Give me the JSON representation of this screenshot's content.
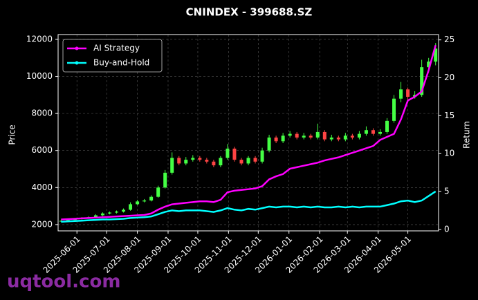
{
  "chart_data": {
    "type": "candlestick",
    "title": "CNINDEX - 399688.SZ",
    "y_label": "Price",
    "y2_label": "Return",
    "watermark": "uqtool.com",
    "x": [
      "2025-05-16",
      "2025-05-23",
      "2025-05-30",
      "2025-06-06",
      "2025-06-13",
      "2025-06-20",
      "2025-06-27",
      "2025-07-04",
      "2025-07-11",
      "2025-07-18",
      "2025-07-25",
      "2025-08-01",
      "2025-08-08",
      "2025-08-15",
      "2025-08-22",
      "2025-08-29",
      "2025-09-05",
      "2025-09-12",
      "2025-09-19",
      "2025-09-26",
      "2025-10-03",
      "2025-10-10",
      "2025-10-17",
      "2025-10-24",
      "2025-10-31",
      "2025-11-07",
      "2025-11-14",
      "2025-11-21",
      "2025-11-28",
      "2025-12-05",
      "2025-12-12",
      "2025-12-19",
      "2025-12-26",
      "2026-01-02",
      "2026-01-09",
      "2026-01-16",
      "2026-01-23",
      "2026-01-30",
      "2026-02-06",
      "2026-02-13",
      "2026-02-20",
      "2026-02-27",
      "2026-03-06",
      "2026-03-13",
      "2026-03-20",
      "2026-03-27",
      "2026-04-03",
      "2026-04-10",
      "2026-04-17",
      "2026-04-24",
      "2026-05-01",
      "2026-05-08",
      "2026-05-15",
      "2026-05-22",
      "2026-05-29"
    ],
    "open": [
      2180,
      2200,
      2250,
      2300,
      2350,
      2400,
      2500,
      2600,
      2650,
      2700,
      2800,
      3100,
      3250,
      3300,
      3500,
      4000,
      4800,
      5600,
      5300,
      5500,
      5600,
      5500,
      5400,
      5200,
      5600,
      6100,
      5500,
      5300,
      5600,
      5400,
      6000,
      6700,
      6500,
      6800,
      6900,
      6700,
      6800,
      6700,
      7000,
      6600,
      6700,
      6600,
      6800,
      6700,
      6900,
      7100,
      6900,
      7000,
      7600,
      8800,
      9300,
      8900,
      9000,
      10500,
      10800
    ],
    "high": [
      2260,
      2300,
      2350,
      2400,
      2450,
      2560,
      2660,
      2700,
      2760,
      2870,
      3200,
      3330,
      3380,
      3580,
      4100,
      4950,
      5900,
      5700,
      5650,
      5750,
      5700,
      5600,
      5500,
      5700,
      6350,
      6200,
      5600,
      5700,
      5700,
      6150,
      6850,
      6800,
      6950,
      7050,
      7000,
      6950,
      6900,
      7450,
      7100,
      6850,
      6800,
      6950,
      6900,
      7050,
      7300,
      7200,
      7150,
      7750,
      9000,
      9700,
      9400,
      9200,
      10900,
      11000,
      11800
    ],
    "low": [
      2150,
      2170,
      2220,
      2270,
      2320,
      2370,
      2460,
      2550,
      2600,
      2650,
      2750,
      3050,
      3200,
      3250,
      3450,
      3950,
      4700,
      5200,
      5200,
      5400,
      5400,
      5300,
      5100,
      5100,
      5500,
      5400,
      5200,
      5200,
      5300,
      5300,
      5900,
      6400,
      6400,
      6700,
      6600,
      6600,
      6600,
      6600,
      6500,
      6500,
      6500,
      6500,
      6600,
      6600,
      6800,
      6800,
      6800,
      6900,
      7500,
      8600,
      8700,
      8800,
      8900,
      10200,
      10600
    ],
    "close": [
      2200,
      2250,
      2300,
      2350,
      2400,
      2500,
      2600,
      2650,
      2700,
      2800,
      3100,
      3250,
      3300,
      3500,
      4000,
      4800,
      5600,
      5300,
      5500,
      5600,
      5500,
      5400,
      5200,
      5600,
      6100,
      5500,
      5300,
      5600,
      5400,
      6000,
      6700,
      6500,
      6800,
      6900,
      6700,
      6800,
      6700,
      7000,
      6600,
      6700,
      6600,
      6800,
      6700,
      6900,
      7100,
      6900,
      7000,
      7600,
      8800,
      9300,
      8900,
      9000,
      10500,
      10800,
      11500
    ],
    "up_color": "#44ff44",
    "down_color": "#ff4444",
    "series": [
      {
        "name": "AI Strategy",
        "color": "#ff00ff",
        "axis": "y2",
        "values": [
          1.3,
          1.35,
          1.4,
          1.45,
          1.5,
          1.55,
          1.6,
          1.65,
          1.7,
          1.75,
          1.8,
          1.85,
          1.9,
          2.1,
          2.6,
          3.0,
          3.3,
          3.4,
          3.5,
          3.6,
          3.7,
          3.7,
          3.6,
          3.9,
          4.9,
          5.1,
          5.2,
          5.3,
          5.4,
          5.7,
          6.6,
          7.0,
          7.3,
          8.0,
          8.2,
          8.4,
          8.6,
          8.8,
          9.1,
          9.3,
          9.5,
          9.8,
          10.1,
          10.4,
          10.7,
          11.0,
          11.8,
          12.2,
          12.6,
          14.5,
          17.0,
          17.5,
          18.2,
          21.0,
          24.3
        ]
      },
      {
        "name": "Buy-and-Hold",
        "color": "#00ffff",
        "axis": "y2",
        "values": [
          1.0,
          1.05,
          1.1,
          1.15,
          1.2,
          1.25,
          1.3,
          1.3,
          1.35,
          1.4,
          1.5,
          1.55,
          1.6,
          1.7,
          2.0,
          2.3,
          2.5,
          2.4,
          2.5,
          2.5,
          2.5,
          2.4,
          2.3,
          2.5,
          2.8,
          2.6,
          2.5,
          2.7,
          2.6,
          2.8,
          3.0,
          2.9,
          3.0,
          3.0,
          2.9,
          3.0,
          2.9,
          3.0,
          2.9,
          2.9,
          3.0,
          2.9,
          3.0,
          2.9,
          3.0,
          3.0,
          3.0,
          3.2,
          3.4,
          3.7,
          3.8,
          3.6,
          3.8,
          4.4,
          5.0
        ]
      }
    ],
    "xlim": [
      "2025-05-13",
      "2026-06-01"
    ],
    "xticks": [
      "2025-06-01",
      "2025-07-01",
      "2025-08-01",
      "2025-09-01",
      "2025-10-01",
      "2025-11-01",
      "2025-12-01",
      "2026-01-01",
      "2026-02-01",
      "2026-03-01",
      "2026-04-01",
      "2026-05-01"
    ],
    "ylim": [
      1660,
      12260
    ],
    "yticks": [
      2000,
      4000,
      6000,
      8000,
      10000,
      12000
    ],
    "y2lim": [
      -0.2,
      25.7
    ],
    "y2ticks": [
      0,
      5,
      10,
      15,
      20,
      25
    ],
    "grid": true,
    "legend": "upper left"
  }
}
